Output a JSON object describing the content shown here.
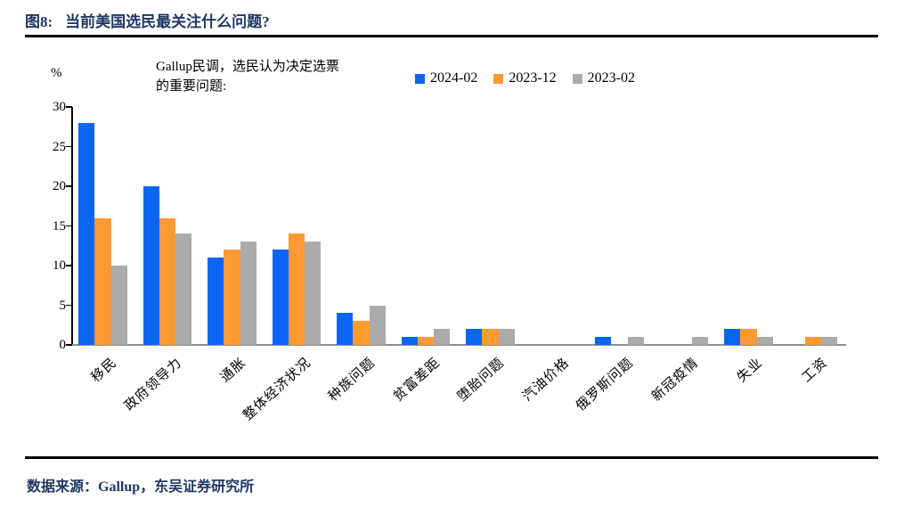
{
  "title": {
    "label": "图8:",
    "text": "当前美国选民最关注什么问题?"
  },
  "annotation": {
    "line1": "Gallup民调，选民认为决定选票",
    "line2": "的重要问题:"
  },
  "chart_data": {
    "type": "bar",
    "title": "Gallup民调，选民认为决定选票的重要问题",
    "ylabel": "%",
    "xlabel": "",
    "ylim": [
      0,
      30
    ],
    "yticks": [
      0,
      5,
      10,
      15,
      20,
      25,
      30
    ],
    "grid": false,
    "legend_position": "top",
    "categories": [
      "移民",
      "政府领导力",
      "通胀",
      "整体经济状况",
      "种族问题",
      "贫富差距",
      "堕胎问题",
      "汽油价格",
      "俄罗斯问题",
      "新冠疫情",
      "失业",
      "工资"
    ],
    "series": [
      {
        "name": "2024-02",
        "color": "#0a66f2",
        "values": [
          28,
          20,
          11,
          12,
          4,
          1,
          2,
          0,
          1,
          0,
          2,
          0
        ]
      },
      {
        "name": "2023-12",
        "color": "#ff9933",
        "values": [
          16,
          16,
          12,
          14,
          3,
          1,
          2,
          0,
          0,
          0,
          2,
          1
        ]
      },
      {
        "name": "2023-02",
        "color": "#ababab",
        "values": [
          10,
          14,
          13,
          13,
          5,
          2,
          2,
          0,
          1,
          1,
          1,
          1
        ]
      }
    ],
    "axis_color": "#8e8e8e"
  },
  "footer": {
    "source": "数据来源：Gallup，东吴证券研究所"
  }
}
